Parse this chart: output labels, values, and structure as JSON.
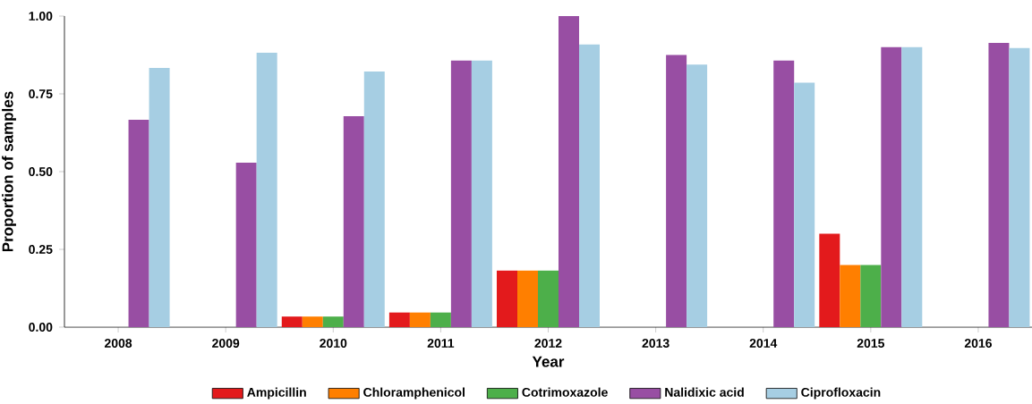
{
  "chart_data": {
    "type": "bar",
    "xlabel": "Year",
    "ylabel": "Proportion of samples",
    "categories": [
      "2008",
      "2009",
      "2010",
      "2011",
      "2012",
      "2013",
      "2014",
      "2015",
      "2016"
    ],
    "series": [
      {
        "name": "Ampicillin",
        "color": "#e31a1c",
        "values": [
          0,
          0,
          0.034,
          0.047,
          0.182,
          0,
          0,
          0.3,
          0
        ]
      },
      {
        "name": "Chloramphenicol",
        "color": "#ff7f00",
        "values": [
          0,
          0,
          0.034,
          0.047,
          0.182,
          0,
          0,
          0.2,
          0
        ]
      },
      {
        "name": "Cotrimoxazole",
        "color": "#4daf4a",
        "values": [
          0,
          0,
          0.034,
          0.047,
          0.182,
          0,
          0,
          0.2,
          0
        ]
      },
      {
        "name": "Nalidixic acid",
        "color": "#984ea3",
        "values": [
          0.667,
          0.529,
          0.678,
          0.857,
          1.0,
          0.875,
          0.857,
          0.9,
          0.914
        ]
      },
      {
        "name": "Ciprofloxacin",
        "color": "#a6cee3",
        "values": [
          0.833,
          0.882,
          0.822,
          0.857,
          0.909,
          0.844,
          0.786,
          0.9,
          0.897
        ]
      }
    ],
    "ylim": [
      0,
      1
    ],
    "yticks": [
      {
        "value": 0,
        "label": "0.00"
      },
      {
        "value": 0.25,
        "label": "0.25"
      },
      {
        "value": 0.5,
        "label": "0.50"
      },
      {
        "value": 0.75,
        "label": "0.75"
      },
      {
        "value": 1,
        "label": "1.00"
      }
    ],
    "legend": "bottom",
    "grid": false
  }
}
